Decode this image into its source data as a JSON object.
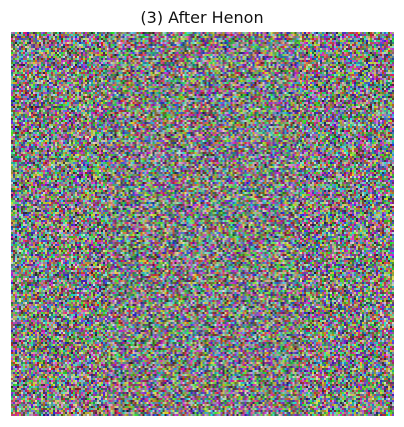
{
  "figure": {
    "title": "(3) After Henon"
  },
  "image": {
    "description_name": "scrambled-color-noise-image"
  }
}
